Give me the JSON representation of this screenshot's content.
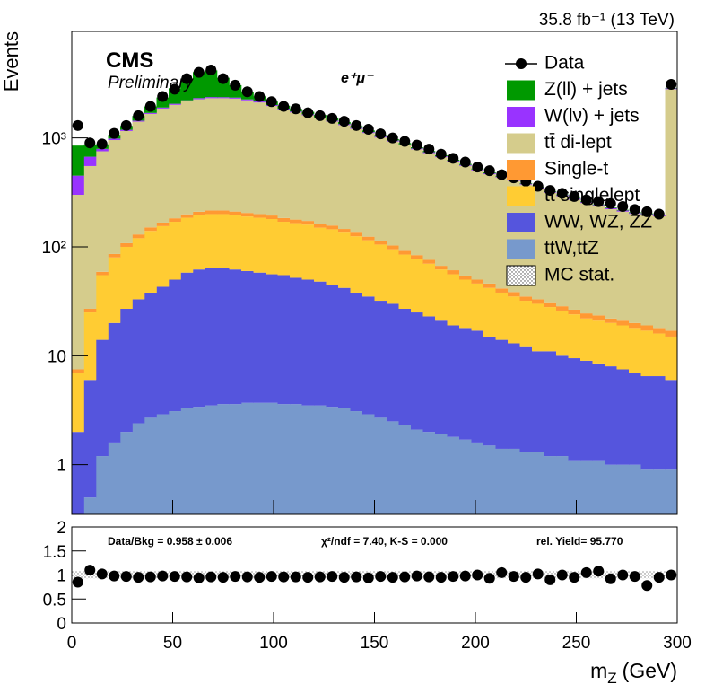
{
  "chart_data": [
    {
      "type": "histogram",
      "stacked": true,
      "log_y": true,
      "lumi_label": "35.8 fb⁻¹ (13 TeV)",
      "experiment": "CMS",
      "status": "Preliminary",
      "channel": "e⁺μ⁻",
      "y_label": "Events",
      "bins": [
        0,
        6,
        12,
        18,
        24,
        30,
        36,
        42,
        48,
        54,
        60,
        66,
        72,
        78,
        84,
        90,
        96,
        102,
        108,
        114,
        120,
        126,
        132,
        138,
        144,
        150,
        156,
        162,
        168,
        174,
        180,
        186,
        192,
        198,
        204,
        210,
        216,
        222,
        228,
        234,
        240,
        246,
        252,
        258,
        264,
        270,
        276,
        282,
        288,
        294,
        300
      ],
      "xlim": [
        0,
        300
      ],
      "xticks": [
        0,
        50,
        100,
        150,
        200,
        250,
        300
      ],
      "ylim": [
        0.35,
        9500
      ],
      "yticks": [
        1,
        10,
        {
          "value": 100,
          "label": "10²"
        },
        {
          "value": 1000,
          "label": "10³"
        }
      ],
      "series": [
        {
          "name": "ttW,ttZ",
          "color": "#7799cc",
          "values": [
            0.3,
            0.5,
            1.2,
            1.6,
            2.0,
            2.4,
            2.7,
            2.9,
            3.1,
            3.3,
            3.4,
            3.5,
            3.6,
            3.6,
            3.7,
            3.7,
            3.7,
            3.6,
            3.6,
            3.5,
            3.5,
            3.4,
            3.3,
            3.1,
            2.9,
            2.7,
            2.5,
            2.3,
            2.1,
            2.0,
            1.9,
            1.8,
            1.7,
            1.6,
            1.5,
            1.4,
            1.4,
            1.3,
            1.3,
            1.2,
            1.2,
            1.1,
            1.1,
            1.1,
            1.0,
            1.0,
            1.0,
            0.9,
            0.9,
            0.9
          ]
        },
        {
          "name": "WW, WZ, ZZ",
          "color": "#5555dd",
          "values": [
            1.7,
            5.5,
            12.8,
            18.4,
            25,
            30.6,
            35.3,
            40.1,
            46.9,
            54.7,
            58.6,
            60.5,
            60.4,
            58.4,
            56.3,
            54.3,
            52.3,
            51.4,
            48.4,
            46.5,
            44.5,
            41.6,
            38.7,
            34.9,
            32.1,
            29.3,
            27.5,
            24.7,
            22.9,
            21,
            19.1,
            17.2,
            16.3,
            15.4,
            13.5,
            12.6,
            11.6,
            10.7,
            9.7,
            9.8,
            8.8,
            8.4,
            7.9,
            7.4,
            7,
            6.5,
            6,
            5.6,
            5.6,
            5.1
          ]
        },
        {
          "name": "tt singlelept",
          "color": "#ffcc33",
          "values": [
            5,
            19,
            41,
            60,
            73,
            87,
            102,
            112,
            120,
            127,
            133,
            136,
            136,
            133,
            130,
            127,
            124,
            115,
            113,
            110,
            102,
            100,
            93,
            87,
            80,
            73,
            65,
            58,
            53,
            47,
            41,
            37,
            32,
            29,
            27,
            24,
            22,
            20,
            19,
            17,
            16,
            14.5,
            13,
            12.5,
            12,
            11.5,
            11,
            10.5,
            9.5,
            9
          ]
        },
        {
          "name": "Single-t",
          "color": "#ff9933",
          "values": [
            0.5,
            2,
            4,
            6,
            8,
            10,
            11,
            12,
            13,
            14,
            15,
            16,
            16,
            16,
            15,
            15,
            14,
            14,
            13,
            13,
            12,
            12,
            11,
            10,
            9,
            8,
            8,
            7,
            6,
            6,
            5,
            5,
            4.5,
            4,
            4,
            3.5,
            3.5,
            3,
            3,
            3,
            2.5,
            2.5,
            2.5,
            2.5,
            2,
            2,
            2,
            2,
            2,
            2
          ]
        },
        {
          "name": "tt̄ di-lept",
          "color": "#d5cc8c",
          "values": [
            293,
            525,
            695,
            870,
            1050,
            1280,
            1510,
            1695,
            1830,
            1965,
            2055,
            2100,
            2100,
            2085,
            2010,
            1915,
            1770,
            1630,
            1535,
            1440,
            1350,
            1255,
            1165,
            1075,
            985,
            895,
            825,
            765,
            702,
            650,
            598,
            544,
            500,
            454,
            418,
            392,
            365,
            338,
            310,
            283,
            264,
            245,
            228,
            214,
            200,
            190,
            181,
            177,
            173,
            2785
          ]
        },
        {
          "name": "W(lν) + jets",
          "color": "#9933ff",
          "values": [
            150,
            120,
            40,
            30,
            30,
            30,
            35,
            40,
            45,
            50,
            55,
            55,
            50,
            50,
            45,
            45,
            40,
            40,
            35,
            35,
            30,
            30,
            28,
            25,
            22,
            20,
            18,
            16,
            15,
            14,
            13,
            12,
            11,
            10,
            9,
            8,
            8,
            7,
            7,
            6,
            6,
            6,
            5,
            5,
            5,
            5,
            4,
            4,
            4,
            50
          ]
        },
        {
          "name": "Z(ll) + jets",
          "color": "#009900",
          "values": [
            400,
            200,
            80,
            80,
            100,
            150,
            250,
            450,
            800,
            1300,
            1700,
            1800,
            1200,
            700,
            400,
            250,
            150,
            120,
            100,
            90,
            80,
            70,
            60,
            50,
            40,
            35,
            30,
            25,
            20,
            18,
            16,
            14,
            12,
            10,
            9,
            8,
            7,
            6,
            5,
            5,
            4,
            4,
            4,
            3,
            3,
            3,
            3,
            3,
            3,
            30
          ]
        }
      ],
      "data_series": {
        "name": "Data",
        "color": "#000000",
        "values": [
          1300,
          900,
          880,
          1100,
          1300,
          1600,
          1950,
          2400,
          2800,
          3500,
          4000,
          4200,
          3500,
          3050,
          2650,
          2400,
          2150,
          1950,
          1850,
          1700,
          1600,
          1510,
          1420,
          1300,
          1200,
          1090,
          1000,
          930,
          860,
          790,
          710,
          650,
          600,
          540,
          500,
          460,
          430,
          400,
          360,
          330,
          310,
          290,
          270,
          260,
          250,
          235,
          220,
          210,
          200,
          3100
        ]
      },
      "mc_stat_label": "MC stat."
    },
    {
      "type": "scatter",
      "x_label": {
        "symbol": "m",
        "subscript": "Z",
        "unit": "(GeV)"
      },
      "annotations": [
        "Data/Bkg = 0.958 ± 0.006",
        "χ²/ndf = 7.40,   K-S = 0.000",
        "rel. Yield= 95.770"
      ],
      "bins": [
        0,
        6,
        12,
        18,
        24,
        30,
        36,
        42,
        48,
        54,
        60,
        66,
        72,
        78,
        84,
        90,
        96,
        102,
        108,
        114,
        120,
        126,
        132,
        138,
        144,
        150,
        156,
        162,
        168,
        174,
        180,
        186,
        192,
        198,
        204,
        210,
        216,
        222,
        228,
        234,
        240,
        246,
        252,
        258,
        264,
        270,
        276,
        282,
        288,
        294,
        300
      ],
      "xlim": [
        0,
        300
      ],
      "xticks": [
        0,
        50,
        100,
        150,
        200,
        250,
        300
      ],
      "ylim": [
        0,
        2
      ],
      "yticks": [
        0,
        0.5,
        1,
        1.5,
        2
      ],
      "reference_line": 1,
      "color": "#000000",
      "values": [
        0.85,
        1.1,
        1.02,
        0.98,
        0.97,
        0.95,
        0.96,
        0.98,
        0.97,
        0.96,
        0.94,
        0.96,
        0.95,
        0.97,
        0.96,
        0.95,
        0.97,
        0.96,
        0.96,
        0.95,
        0.96,
        0.97,
        0.95,
        0.96,
        0.94,
        0.97,
        0.95,
        0.96,
        0.98,
        0.96,
        0.95,
        0.97,
        0.98,
        1.0,
        0.93,
        1.05,
        0.97,
        0.95,
        1.02,
        0.9,
        1.0,
        0.95,
        1.05,
        1.08,
        0.92,
        1.0,
        0.97,
        0.78,
        0.95,
        1.0
      ]
    }
  ]
}
